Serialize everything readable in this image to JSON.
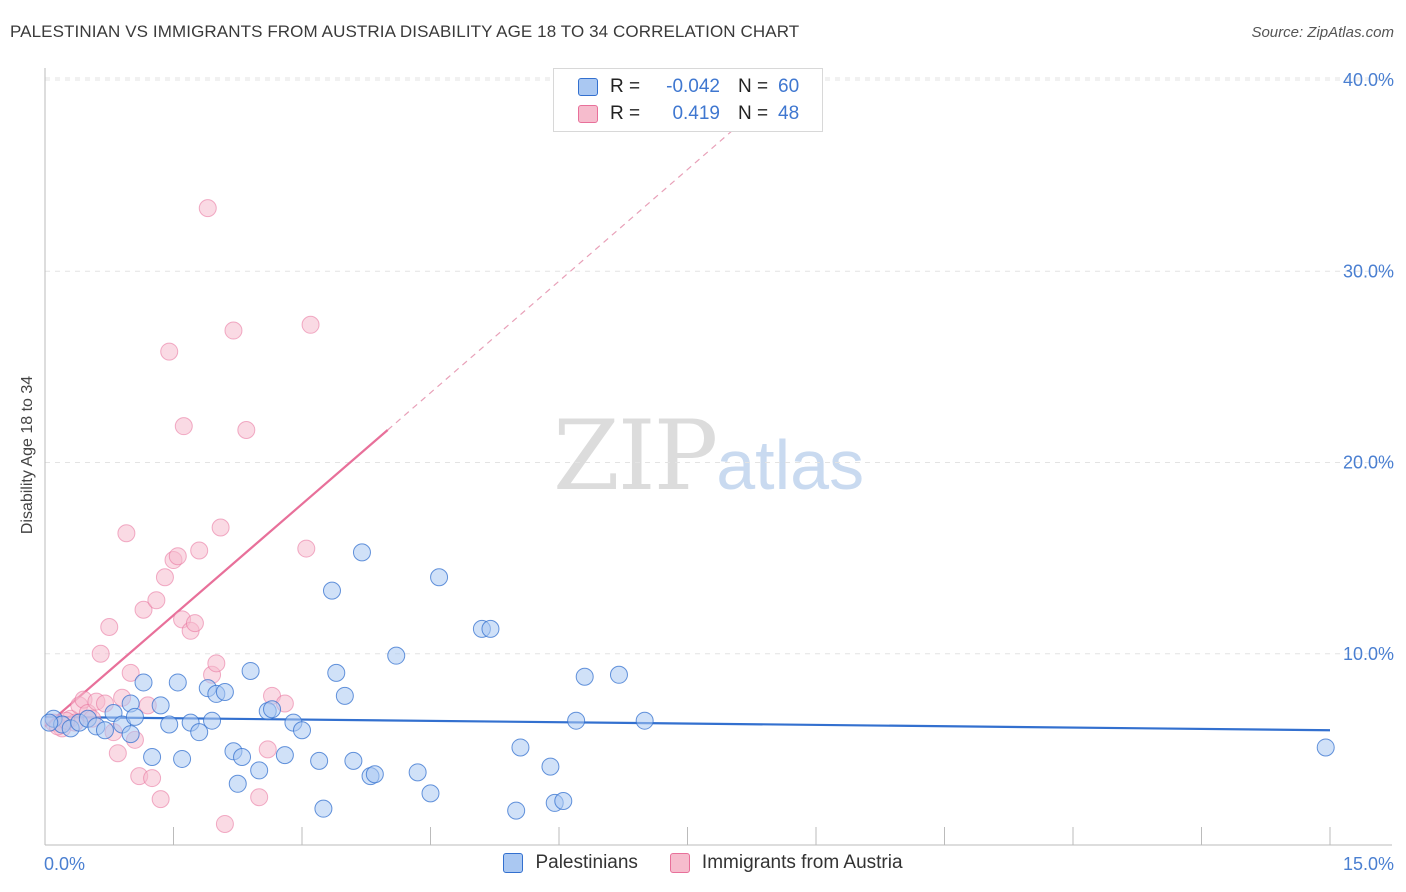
{
  "title": "PALESTINIAN VS IMMIGRANTS FROM AUSTRIA DISABILITY AGE 18 TO 34 CORRELATION CHART",
  "source": "Source: ZipAtlas.com",
  "watermark": {
    "zip": "ZIP",
    "atlas": "atlas"
  },
  "colors": {
    "blue": "#3370cf",
    "blue_fill": "#aac8f2",
    "pink": "#e8709a",
    "pink_fill": "#f6bccd",
    "axis_text": "#4a7fd1"
  },
  "legend": {
    "rows": [
      {
        "r_label": "R =",
        "r_value": "-0.042",
        "n_label": "N =",
        "n_value": "60"
      },
      {
        "r_label": "R =",
        "r_value": "0.419",
        "n_label": "N =",
        "n_value": "48"
      }
    ]
  },
  "bottom_legend": {
    "series1": "Palestinians",
    "series2": "Immigrants from Austria"
  },
  "chart_data": {
    "type": "scatter",
    "ylabel": "Disability Age 18 to 34",
    "xlim": [
      0,
      15
    ],
    "ylim": [
      0,
      40
    ],
    "x_tick_labels": [
      "0.0%",
      "15.0%"
    ],
    "y_ticks": [
      10,
      20,
      30,
      40
    ],
    "y_tick_labels": [
      "10.0%",
      "20.0%",
      "30.0%",
      "40.0%"
    ],
    "series": [
      {
        "name": "Palestinians",
        "color": "#3370cf",
        "trend": {
          "x0": 0,
          "y0": 6.7,
          "x1": 15,
          "y1": 6.0
        },
        "points": [
          [
            0.1,
            6.6
          ],
          [
            0.2,
            6.3
          ],
          [
            0.3,
            6.1
          ],
          [
            0.4,
            6.4
          ],
          [
            0.5,
            6.6
          ],
          [
            0.6,
            6.2
          ],
          [
            0.7,
            6.0
          ],
          [
            0.8,
            6.9
          ],
          [
            0.9,
            6.3
          ],
          [
            1.0,
            7.4
          ],
          [
            1.0,
            5.8
          ],
          [
            1.05,
            6.7
          ],
          [
            1.15,
            8.5
          ],
          [
            1.25,
            4.6
          ],
          [
            1.35,
            7.3
          ],
          [
            1.45,
            6.3
          ],
          [
            1.55,
            8.5
          ],
          [
            1.6,
            4.5
          ],
          [
            1.7,
            6.4
          ],
          [
            1.8,
            5.9
          ],
          [
            1.9,
            8.2
          ],
          [
            1.95,
            6.5
          ],
          [
            2.0,
            7.9
          ],
          [
            2.1,
            8.0
          ],
          [
            2.2,
            4.9
          ],
          [
            2.25,
            3.2
          ],
          [
            2.3,
            4.6
          ],
          [
            2.4,
            9.1
          ],
          [
            2.5,
            3.9
          ],
          [
            2.6,
            7.0
          ],
          [
            2.65,
            7.1
          ],
          [
            2.8,
            4.7
          ],
          [
            2.9,
            6.4
          ],
          [
            3.0,
            6.0
          ],
          [
            3.2,
            4.4
          ],
          [
            3.25,
            1.9
          ],
          [
            3.4,
            9.0
          ],
          [
            3.35,
            13.3
          ],
          [
            3.5,
            7.8
          ],
          [
            3.6,
            4.4
          ],
          [
            3.7,
            15.3
          ],
          [
            3.8,
            3.6
          ],
          [
            3.85,
            3.7
          ],
          [
            4.1,
            9.9
          ],
          [
            4.35,
            3.8
          ],
          [
            4.5,
            2.7
          ],
          [
            4.6,
            14.0
          ],
          [
            5.1,
            11.3
          ],
          [
            5.2,
            11.3
          ],
          [
            5.5,
            1.8
          ],
          [
            5.55,
            5.1
          ],
          [
            5.9,
            4.1
          ],
          [
            5.95,
            2.2
          ],
          [
            6.05,
            2.3
          ],
          [
            6.2,
            6.5
          ],
          [
            6.3,
            8.8
          ],
          [
            6.7,
            8.9
          ],
          [
            7.0,
            6.5
          ],
          [
            14.95,
            5.1
          ],
          [
            0.05,
            6.4
          ]
        ]
      },
      {
        "name": "Immigrants from Austria",
        "color": "#e8709a",
        "trend": {
          "x0": 0,
          "y0": 6.2,
          "x1": 4.0,
          "y1": 21.7,
          "dash_to_x": 8.6,
          "dash_to_y": 39.6
        },
        "points": [
          [
            0.1,
            6.4
          ],
          [
            0.2,
            6.1
          ],
          [
            0.3,
            6.6
          ],
          [
            0.35,
            6.4
          ],
          [
            0.4,
            7.3
          ],
          [
            0.45,
            7.6
          ],
          [
            0.5,
            6.9
          ],
          [
            0.55,
            6.6
          ],
          [
            0.6,
            7.5
          ],
          [
            0.65,
            10.0
          ],
          [
            0.7,
            7.4
          ],
          [
            0.75,
            11.4
          ],
          [
            0.8,
            5.9
          ],
          [
            0.85,
            4.8
          ],
          [
            0.9,
            7.7
          ],
          [
            0.95,
            16.3
          ],
          [
            1.0,
            9.0
          ],
          [
            1.05,
            5.5
          ],
          [
            1.1,
            3.6
          ],
          [
            1.15,
            12.3
          ],
          [
            1.2,
            7.3
          ],
          [
            1.25,
            3.5
          ],
          [
            1.3,
            12.8
          ],
          [
            1.35,
            2.4
          ],
          [
            1.4,
            14.0
          ],
          [
            1.45,
            25.8
          ],
          [
            1.5,
            14.9
          ],
          [
            1.55,
            15.1
          ],
          [
            1.6,
            11.8
          ],
          [
            1.62,
            21.9
          ],
          [
            1.7,
            11.2
          ],
          [
            1.75,
            11.6
          ],
          [
            1.8,
            15.4
          ],
          [
            1.9,
            33.3
          ],
          [
            1.95,
            8.9
          ],
          [
            2.0,
            9.5
          ],
          [
            2.05,
            16.6
          ],
          [
            2.1,
            1.1
          ],
          [
            2.2,
            26.9
          ],
          [
            2.35,
            21.7
          ],
          [
            2.5,
            2.5
          ],
          [
            2.6,
            5.0
          ],
          [
            2.65,
            7.8
          ],
          [
            2.8,
            7.4
          ],
          [
            3.1,
            27.2
          ],
          [
            3.05,
            15.5
          ],
          [
            0.15,
            6.2
          ],
          [
            0.25,
            6.5
          ]
        ]
      }
    ]
  }
}
